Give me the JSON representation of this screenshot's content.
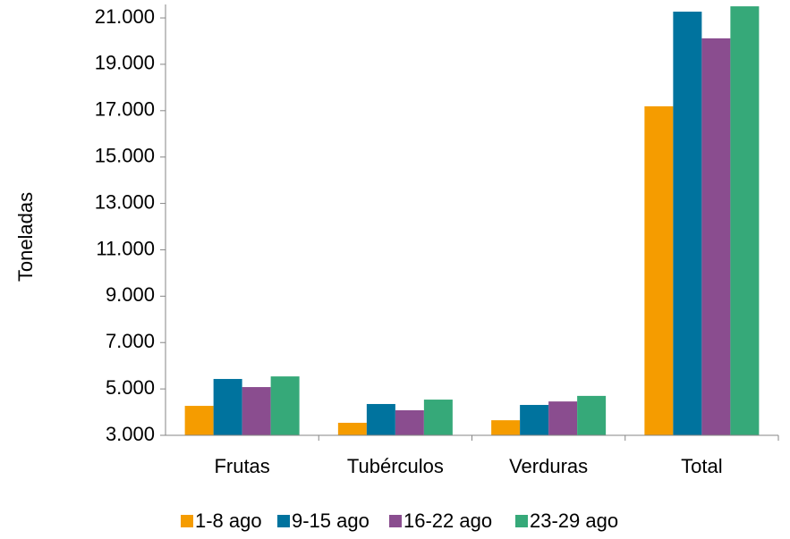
{
  "chart_data": {
    "type": "bar",
    "y_label": "Toneladas",
    "categories": [
      "Frutas",
      "Tubérculos",
      "Verduras",
      "Total"
    ],
    "series": [
      {
        "name": "1-8 ago",
        "color": "#f59c00",
        "values": [
          4270,
          3540,
          3650,
          17190
        ]
      },
      {
        "name": "9-15 ago",
        "color": "#00739e",
        "values": [
          5430,
          4350,
          4310,
          21270
        ]
      },
      {
        "name": "16-22 ago",
        "color": "#8a4d8f",
        "values": [
          5080,
          4080,
          4460,
          20120
        ]
      },
      {
        "name": "23-29 ago",
        "color": "#36a979",
        "values": [
          5540,
          4540,
          4700,
          21500
        ]
      }
    ],
    "ylim": [
      3000,
      21580
    ],
    "yticks": [
      {
        "value": 3000,
        "label": "3.000"
      },
      {
        "value": 5000,
        "label": "5.000"
      },
      {
        "value": 7000,
        "label": "7.000"
      },
      {
        "value": 9000,
        "label": "9.000"
      },
      {
        "value": 11000,
        "label": "11.000"
      },
      {
        "value": 13000,
        "label": "13.000"
      },
      {
        "value": 15000,
        "label": "15.000"
      },
      {
        "value": 17000,
        "label": "17.000"
      },
      {
        "value": 19000,
        "label": "19.000"
      },
      {
        "value": 21000,
        "label": "21.000"
      }
    ],
    "legend": "bottom"
  }
}
